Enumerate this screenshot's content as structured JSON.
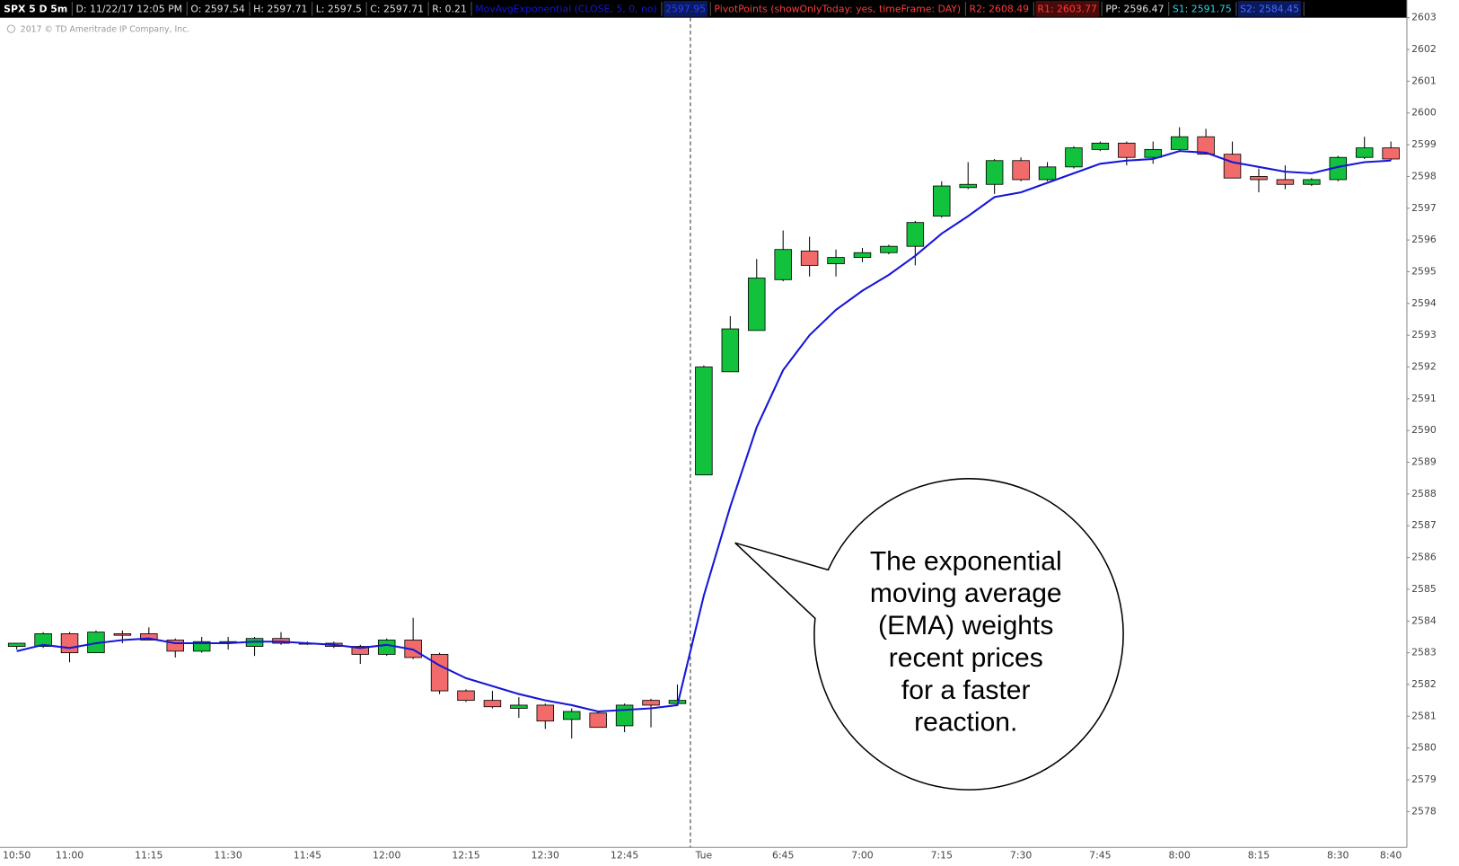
{
  "toolbar": [
    {
      "text": "SPX 5 D 5m",
      "color": "#ffffff",
      "bold": true
    },
    {
      "text": "D: 11/22/17 12:05 PM",
      "color": "#e0e0e0"
    },
    {
      "text": "O: 2597.54",
      "color": "#e0e0e0"
    },
    {
      "text": "H: 2597.71",
      "color": "#e0e0e0"
    },
    {
      "text": "L: 2597.5",
      "color": "#e0e0e0"
    },
    {
      "text": "C: 2597.71",
      "color": "#e0e0e0"
    },
    {
      "text": "R: 0.21",
      "color": "#e0e0e0"
    },
    {
      "text": "2597.95",
      "color": "#2a3cff",
      "bg": "#0a1a60"
    },
    {
      "text": "PivotPoints (showOnlyToday: yes, timeFrame: DAY)",
      "color": "#ff3b3b"
    },
    {
      "text": "R2: 2608.49",
      "color": "#ff3b3b"
    },
    {
      "text": "R1: 2603.77",
      "color": "#ff3b3b",
      "bg": "#4a0a0a"
    },
    {
      "text": "PP: 2596.47",
      "color": "#e0e0e0"
    },
    {
      "text": "S1: 2591.75",
      "color": "#29d3e6"
    },
    {
      "text": "S2: 2584.45",
      "color": "#4a6cff",
      "bg": "#0a1a60"
    }
  ],
  "copyright": "2017 © TD Ameritrade IP Company, Inc.",
  "chart_data": {
    "type": "candlestick",
    "categories": [
      "10:50",
      null,
      "11:00",
      null,
      null,
      "11:15",
      null,
      null,
      "11:30",
      null,
      null,
      "11:45",
      null,
      null,
      "12:00",
      null,
      null,
      "12:15",
      null,
      null,
      "12:30",
      null,
      null,
      "12:45",
      null,
      null,
      "Tue",
      null,
      null,
      "6:45",
      null,
      null,
      "7:00",
      null,
      null,
      "7:15",
      null,
      null,
      "7:30",
      null,
      null,
      "7:45",
      null,
      null,
      "8:00",
      null,
      null,
      "8:15",
      null,
      null,
      "8:30",
      null,
      "8:40"
    ],
    "open": [
      2583.2,
      2583.2,
      2583.6,
      2583.0,
      2583.6,
      2583.6,
      2583.4,
      2583.05,
      2583.3,
      2583.2,
      2583.45,
      2583.3,
      2583.3,
      2583.2,
      2582.95,
      2583.4,
      2582.95,
      2581.8,
      2581.5,
      2581.25,
      2581.35,
      2580.9,
      2581.1,
      2580.7,
      2581.5,
      2581.4,
      2588.6,
      2591.85,
      2593.15,
      2594.75,
      2595.65,
      2595.25,
      2595.45,
      2595.6,
      2595.8,
      2596.75,
      2597.65,
      2597.75,
      2598.5,
      2597.9,
      2598.3,
      2598.85,
      2599.05,
      2598.6,
      2598.85,
      2599.25,
      2598.7,
      2598.0,
      2597.9,
      2597.75,
      2597.9,
      2598.6,
      2598.9
    ],
    "high": [
      2583.3,
      2583.65,
      2583.65,
      2583.7,
      2583.7,
      2583.8,
      2583.45,
      2583.5,
      2583.5,
      2583.5,
      2583.65,
      2583.35,
      2583.35,
      2583.25,
      2583.45,
      2584.1,
      2583.0,
      2581.85,
      2581.8,
      2581.6,
      2581.4,
      2581.25,
      2581.15,
      2581.4,
      2581.55,
      2582.0,
      2592.05,
      2593.6,
      2595.4,
      2596.3,
      2596.1,
      2595.7,
      2595.75,
      2595.85,
      2596.6,
      2597.85,
      2598.45,
      2598.55,
      2598.6,
      2598.45,
      2598.95,
      2599.1,
      2599.1,
      2599.1,
      2599.55,
      2599.5,
      2599.1,
      2598.25,
      2598.35,
      2597.95,
      2598.65,
      2599.25,
      2599.1
    ],
    "low": [
      2583.1,
      2583.15,
      2582.7,
      2583.0,
      2583.3,
      2583.4,
      2582.85,
      2583.0,
      2583.1,
      2582.9,
      2583.25,
      2583.25,
      2583.15,
      2582.65,
      2582.9,
      2582.8,
      2581.7,
      2581.45,
      2581.25,
      2580.95,
      2580.6,
      2580.3,
      2580.65,
      2580.5,
      2580.65,
      2581.35,
      2588.6,
      2591.85,
      2593.15,
      2594.7,
      2594.85,
      2594.85,
      2595.3,
      2595.55,
      2595.2,
      2596.7,
      2597.6,
      2597.45,
      2597.85,
      2597.85,
      2598.25,
      2598.8,
      2598.35,
      2598.4,
      2598.8,
      2598.7,
      2597.95,
      2597.5,
      2597.6,
      2597.7,
      2597.85,
      2598.55,
      2598.5
    ],
    "close": [
      2583.3,
      2583.6,
      2583.0,
      2583.65,
      2583.55,
      2583.4,
      2583.05,
      2583.35,
      2583.35,
      2583.45,
      2583.3,
      2583.3,
      2583.2,
      2582.95,
      2583.4,
      2582.85,
      2581.8,
      2581.5,
      2581.3,
      2581.35,
      2580.85,
      2581.15,
      2580.65,
      2581.35,
      2581.35,
      2581.5,
      2592.0,
      2593.2,
      2594.8,
      2595.7,
      2595.2,
      2595.45,
      2595.6,
      2595.8,
      2596.55,
      2597.7,
      2597.75,
      2598.5,
      2597.9,
      2598.3,
      2598.9,
      2599.05,
      2598.6,
      2598.85,
      2599.25,
      2598.7,
      2597.95,
      2597.9,
      2597.75,
      2597.9,
      2598.6,
      2598.9,
      2598.55
    ],
    "up_color": "#12c23c",
    "down_color": "#f26b6b",
    "series": [
      {
        "name": "MovAvgExponential (CLOSE, 5, 0, no)",
        "color": "#1616d8",
        "values": [
          2583.05,
          2583.25,
          2583.15,
          2583.3,
          2583.4,
          2583.45,
          2583.3,
          2583.3,
          2583.3,
          2583.35,
          2583.35,
          2583.3,
          2583.25,
          2583.15,
          2583.25,
          2583.1,
          2582.6,
          2582.2,
          2581.95,
          2581.7,
          2581.5,
          2581.35,
          2581.15,
          2581.2,
          2581.25,
          2581.35,
          2584.8,
          2587.6,
          2590.1,
          2591.9,
          2593.0,
          2593.8,
          2594.4,
          2594.9,
          2595.5,
          2596.2,
          2596.75,
          2597.35,
          2597.5,
          2597.8,
          2598.1,
          2598.4,
          2598.5,
          2598.55,
          2598.8,
          2598.75,
          2598.45,
          2598.3,
          2598.15,
          2598.1,
          2598.3,
          2598.45,
          2598.5
        ]
      }
    ],
    "ylim": [
      2576.9,
      2603.0
    ],
    "yticks": [
      2578,
      2579,
      2580,
      2581,
      2582,
      2583,
      2584,
      2585,
      2586,
      2587,
      2588,
      2589,
      2590,
      2591,
      2592,
      2593,
      2594,
      2595,
      2596,
      2597,
      2598,
      2599,
      2600,
      2601,
      2602,
      2603
    ],
    "annotation": [
      "The exponential",
      "moving average",
      "(EMA) weights",
      "recent prices",
      "for a faster",
      "reaction."
    ]
  }
}
